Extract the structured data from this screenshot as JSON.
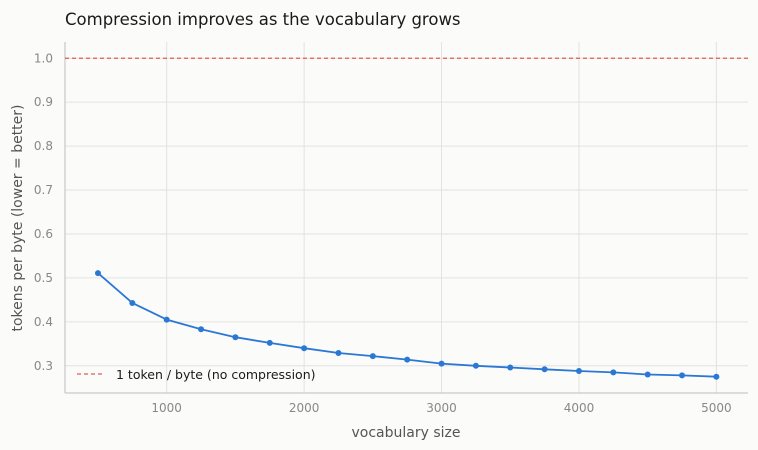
{
  "chart_data": {
    "type": "line",
    "title": "Compression improves as the vocabulary grows",
    "xlabel": "vocabulary size",
    "ylabel": "tokens per byte (lower = better)",
    "xlim": [
      260,
      5230
    ],
    "ylim": [
      0.238,
      1.037
    ],
    "xticks": [
      1000,
      2000,
      3000,
      4000,
      5000
    ],
    "yticks": [
      0.3,
      0.4,
      0.5,
      0.6,
      0.7,
      0.8,
      0.9,
      1.0
    ],
    "grid": true,
    "legend_position": "lower-left",
    "series": [
      {
        "color": "#2b78d4",
        "x": [
          500,
          750,
          1000,
          1250,
          1500,
          1750,
          2000,
          2250,
          2500,
          2750,
          3000,
          3250,
          3500,
          3750,
          4000,
          4250,
          4500,
          4750,
          5000
        ],
        "y": [
          0.511,
          0.443,
          0.405,
          0.383,
          0.365,
          0.352,
          0.34,
          0.329,
          0.322,
          0.314,
          0.305,
          0.3,
          0.296,
          0.292,
          0.288,
          0.285,
          0.28,
          0.278,
          0.275
        ]
      }
    ],
    "reference_line": {
      "y": 1.0,
      "label": "1 token / byte (no compression)",
      "color": "#e25b52",
      "style": "dashed"
    }
  }
}
